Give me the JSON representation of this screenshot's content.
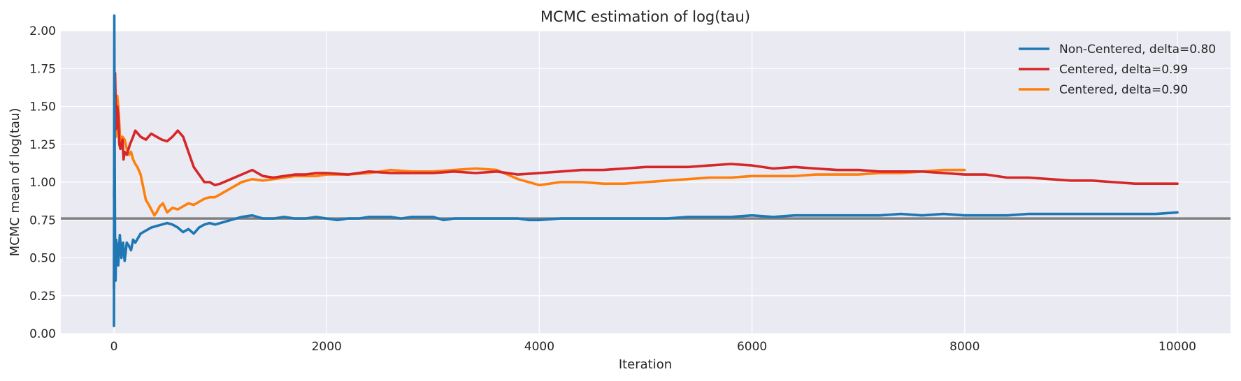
{
  "chart_data": {
    "type": "line",
    "title": "MCMC estimation of log(tau)",
    "xlabel": "Iteration",
    "ylabel": "MCMC mean of log(tau)",
    "xlim": [
      -500,
      10500
    ],
    "ylim": [
      0,
      2
    ],
    "xticks": [
      0,
      2000,
      4000,
      6000,
      8000,
      10000
    ],
    "yticks": [
      0.0,
      0.25,
      0.5,
      0.75,
      1.0,
      1.25,
      1.5,
      1.75,
      2.0
    ],
    "xtick_labels": [
      "0",
      "2000",
      "4000",
      "6000",
      "8000",
      "10000"
    ],
    "ytick_labels": [
      "0.00",
      "0.25",
      "0.50",
      "0.75",
      "1.00",
      "1.25",
      "1.50",
      "1.75",
      "2.00"
    ],
    "grid": true,
    "legend_position": "top-right",
    "reference_line": {
      "y": 0.76,
      "color": "#808080"
    },
    "series": [
      {
        "name": "Non-Centered, delta=0.80",
        "color": "#1f77b4",
        "x": [
          0,
          3,
          6,
          10,
          15,
          20,
          30,
          40,
          55,
          70,
          85,
          100,
          120,
          140,
          160,
          180,
          200,
          250,
          300,
          350,
          400,
          450,
          500,
          550,
          600,
          650,
          700,
          750,
          800,
          850,
          900,
          950,
          1000,
          1100,
          1200,
          1300,
          1400,
          1500,
          1600,
          1700,
          1800,
          1900,
          2000,
          2100,
          2200,
          2300,
          2400,
          2500,
          2600,
          2700,
          2800,
          2900,
          3000,
          3100,
          3200,
          3300,
          3400,
          3500,
          3600,
          3700,
          3800,
          3900,
          4000,
          4200,
          4400,
          4600,
          4800,
          5000,
          5200,
          5400,
          5600,
          5800,
          6000,
          6200,
          6400,
          6600,
          6800,
          7000,
          7200,
          7400,
          7600,
          7800,
          8000,
          8200,
          8400,
          8600,
          8800,
          9000,
          9200,
          9400,
          9600,
          9800,
          10000
        ],
        "values": [
          0.05,
          2.1,
          1.2,
          0.55,
          0.35,
          0.62,
          0.58,
          0.45,
          0.65,
          0.5,
          0.6,
          0.48,
          0.6,
          0.58,
          0.55,
          0.62,
          0.6,
          0.66,
          0.68,
          0.7,
          0.71,
          0.72,
          0.73,
          0.72,
          0.7,
          0.67,
          0.69,
          0.66,
          0.7,
          0.72,
          0.73,
          0.72,
          0.73,
          0.75,
          0.77,
          0.78,
          0.76,
          0.76,
          0.77,
          0.76,
          0.76,
          0.77,
          0.76,
          0.75,
          0.76,
          0.76,
          0.77,
          0.77,
          0.77,
          0.76,
          0.77,
          0.77,
          0.77,
          0.75,
          0.76,
          0.76,
          0.76,
          0.76,
          0.76,
          0.76,
          0.76,
          0.75,
          0.75,
          0.76,
          0.76,
          0.76,
          0.76,
          0.76,
          0.76,
          0.77,
          0.77,
          0.77,
          0.78,
          0.77,
          0.78,
          0.78,
          0.78,
          0.78,
          0.78,
          0.79,
          0.78,
          0.79,
          0.78,
          0.78,
          0.78,
          0.79,
          0.79,
          0.79,
          0.79,
          0.79,
          0.79,
          0.79,
          0.8
        ]
      },
      {
        "name": "Centered, delta=0.99",
        "color": "#d62728",
        "x": [
          0,
          5,
          10,
          15,
          20,
          30,
          40,
          50,
          60,
          70,
          80,
          90,
          100,
          120,
          150,
          180,
          200,
          250,
          300,
          350,
          400,
          450,
          500,
          550,
          600,
          650,
          700,
          750,
          800,
          850,
          900,
          950,
          1000,
          1100,
          1200,
          1300,
          1400,
          1500,
          1600,
          1700,
          1800,
          1900,
          2000,
          2200,
          2400,
          2600,
          2800,
          3000,
          3200,
          3400,
          3600,
          3800,
          4000,
          4200,
          4400,
          4600,
          4800,
          5000,
          5200,
          5400,
          5600,
          5800,
          6000,
          6200,
          6400,
          6600,
          6800,
          7000,
          7200,
          7400,
          7600,
          7800,
          8000,
          8200,
          8400,
          8600,
          8800,
          9000,
          9200,
          9400,
          9600,
          9800,
          10000
        ],
        "values": [
          0.3,
          1.4,
          1.72,
          1.55,
          1.35,
          1.5,
          1.45,
          1.25,
          1.22,
          1.25,
          1.28,
          1.15,
          1.2,
          1.18,
          1.25,
          1.3,
          1.34,
          1.3,
          1.28,
          1.32,
          1.3,
          1.28,
          1.27,
          1.3,
          1.34,
          1.3,
          1.2,
          1.1,
          1.05,
          1.0,
          1.0,
          0.98,
          0.99,
          1.02,
          1.05,
          1.08,
          1.04,
          1.03,
          1.04,
          1.05,
          1.05,
          1.06,
          1.06,
          1.05,
          1.07,
          1.06,
          1.06,
          1.06,
          1.07,
          1.06,
          1.07,
          1.05,
          1.06,
          1.07,
          1.08,
          1.08,
          1.09,
          1.1,
          1.1,
          1.1,
          1.11,
          1.12,
          1.11,
          1.09,
          1.1,
          1.09,
          1.08,
          1.08,
          1.07,
          1.07,
          1.07,
          1.06,
          1.05,
          1.05,
          1.03,
          1.03,
          1.02,
          1.01,
          1.01,
          1.0,
          0.99,
          0.99,
          0.99
        ]
      },
      {
        "name": "Centered, delta=0.90",
        "color": "#ff7f0e",
        "x": [
          0,
          5,
          10,
          15,
          20,
          30,
          40,
          50,
          60,
          80,
          100,
          120,
          140,
          160,
          180,
          200,
          220,
          250,
          280,
          300,
          320,
          350,
          380,
          400,
          430,
          460,
          500,
          550,
          600,
          650,
          700,
          750,
          800,
          850,
          900,
          950,
          1000,
          1100,
          1200,
          1300,
          1400,
          1500,
          1600,
          1700,
          1800,
          1900,
          2000,
          2200,
          2400,
          2600,
          2800,
          3000,
          3200,
          3400,
          3600,
          3700,
          3800,
          3900,
          4000,
          4200,
          4400,
          4600,
          4800,
          5000,
          5200,
          5400,
          5600,
          5800,
          6000,
          6200,
          6400,
          6600,
          6800,
          7000,
          7200,
          7400,
          7600,
          7800,
          8000
        ],
        "values": [
          0.9,
          1.2,
          1.45,
          1.35,
          1.3,
          1.57,
          1.5,
          1.38,
          1.25,
          1.3,
          1.28,
          1.22,
          1.18,
          1.2,
          1.15,
          1.12,
          1.1,
          1.05,
          0.95,
          0.88,
          0.86,
          0.82,
          0.78,
          0.8,
          0.84,
          0.86,
          0.8,
          0.83,
          0.82,
          0.84,
          0.86,
          0.85,
          0.87,
          0.89,
          0.9,
          0.9,
          0.92,
          0.96,
          1.0,
          1.02,
          1.01,
          1.02,
          1.03,
          1.04,
          1.04,
          1.04,
          1.05,
          1.05,
          1.06,
          1.08,
          1.07,
          1.07,
          1.08,
          1.09,
          1.08,
          1.05,
          1.02,
          1.0,
          0.98,
          1.0,
          1.0,
          0.99,
          0.99,
          1.0,
          1.01,
          1.02,
          1.03,
          1.03,
          1.04,
          1.04,
          1.04,
          1.05,
          1.05,
          1.05,
          1.06,
          1.06,
          1.07,
          1.08,
          1.08
        ]
      }
    ]
  }
}
